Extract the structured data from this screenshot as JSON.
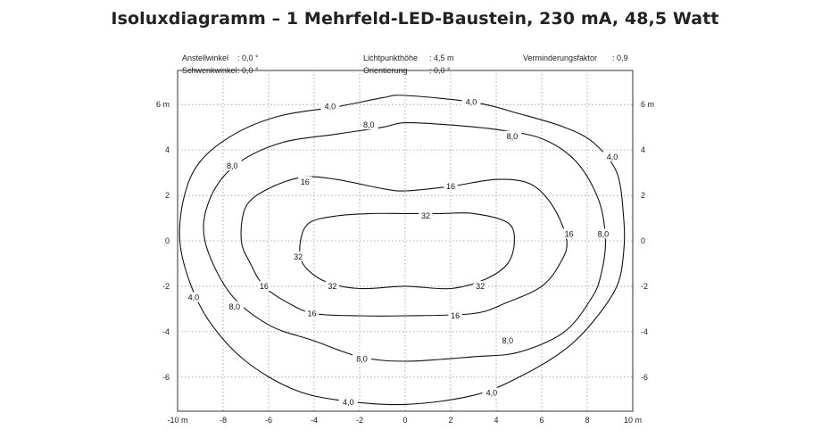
{
  "title": "Isoluxdiagramm – 1 Mehrfeld-LED-Baustein, 230 mA, 48,5 Watt",
  "parameters": {
    "anstellwinkel_label": "Anstellwinkel",
    "anstellwinkel_value": ": 0,0 °",
    "schwenkwinkel_label": "Schwenkwinkel",
    "schwenkwinkel_value": ": 0,0 °",
    "lichtpunkthoehe_label": "Lichtpunkthöhe",
    "lichtpunkthoehe_value": ": 4,5 m",
    "orientierung_label": "Orientierung",
    "orientierung_value": ": 0,0 °",
    "verminderungsfaktor_label": "Verminderungsfaktor",
    "verminderungsfaktor_value": ": 0,9"
  },
  "chart_data": {
    "type": "isolux-contour",
    "xlim": [
      -10,
      10
    ],
    "ylim": [
      -7.5,
      7.5
    ],
    "x_ticks": [
      "-10 m",
      "-8",
      "-6",
      "-4",
      "-2",
      "0",
      "2",
      "4",
      "6",
      "8",
      "10 m"
    ],
    "y_ticks_left": [
      "6 m",
      "4",
      "2",
      "0",
      "-2",
      "-4",
      "-6"
    ],
    "y_ticks_right": [
      "6 m",
      "4",
      "2",
      "0",
      "-2",
      "-4",
      "-6"
    ],
    "grid": "dotted",
    "contours": [
      {
        "level": "4,0",
        "points": [
          [
            0,
            6.4
          ],
          [
            3,
            6.1
          ],
          [
            5,
            5.6
          ],
          [
            7,
            5.0
          ],
          [
            8.3,
            4.3
          ],
          [
            9.3,
            3
          ],
          [
            9.6,
            1
          ],
          [
            9.6,
            -0.5
          ],
          [
            9.3,
            -2
          ],
          [
            8.3,
            -3.5
          ],
          [
            7,
            -4.8
          ],
          [
            5,
            -6
          ],
          [
            3,
            -6.8
          ],
          [
            0,
            -7.2
          ],
          [
            -3,
            -7
          ],
          [
            -5,
            -6.5
          ],
          [
            -7,
            -5.3
          ],
          [
            -8.5,
            -3.7
          ],
          [
            -9.4,
            -2
          ],
          [
            -9.9,
            0
          ],
          [
            -9.7,
            2
          ],
          [
            -9,
            3.5
          ],
          [
            -7.5,
            4.7
          ],
          [
            -5.5,
            5.5
          ],
          [
            -3,
            5.9
          ],
          [
            -1,
            6.3
          ]
        ],
        "labels": [
          [
            -3.3,
            5.9
          ],
          [
            2.9,
            6.1
          ],
          [
            9.1,
            3.7
          ],
          [
            -9.3,
            -2.5
          ],
          [
            -2.5,
            -7.1
          ],
          [
            3.8,
            -6.7
          ]
        ]
      },
      {
        "level": "8,0",
        "points": [
          [
            0,
            5.2
          ],
          [
            2,
            5.1
          ],
          [
            4,
            4.9
          ],
          [
            6,
            4.5
          ],
          [
            7.5,
            3.5
          ],
          [
            8.5,
            1.8
          ],
          [
            8.8,
            0
          ],
          [
            8.6,
            -1.5
          ],
          [
            8.2,
            -2.5
          ],
          [
            7,
            -4
          ],
          [
            5,
            -4.9
          ],
          [
            3,
            -5.1
          ],
          [
            0,
            -5.3
          ],
          [
            -2,
            -5.1
          ],
          [
            -4,
            -4.4
          ],
          [
            -6,
            -3.7
          ],
          [
            -7.7,
            -2.3
          ],
          [
            -8.8,
            0
          ],
          [
            -8.6,
            1.8
          ],
          [
            -7.5,
            3.3
          ],
          [
            -5.5,
            4.3
          ],
          [
            -3,
            4.7
          ],
          [
            -1,
            5
          ]
        ],
        "labels": [
          [
            -1.6,
            5.1
          ],
          [
            4.7,
            4.6
          ],
          [
            8.7,
            0.3
          ],
          [
            -7.6,
            3.3
          ],
          [
            -7.5,
            -2.9
          ],
          [
            -1.9,
            -5.2
          ],
          [
            4.5,
            -4.4
          ]
        ]
      },
      {
        "level": "16",
        "points": [
          [
            0,
            2.2
          ],
          [
            2,
            2.4
          ],
          [
            4,
            2.7
          ],
          [
            5.5,
            2.5
          ],
          [
            6.5,
            1.5
          ],
          [
            7.1,
            0
          ],
          [
            6.8,
            -1
          ],
          [
            6,
            -2
          ],
          [
            4.5,
            -2.7
          ],
          [
            3,
            -3.2
          ],
          [
            0,
            -3.3
          ],
          [
            -2,
            -3.3
          ],
          [
            -4,
            -3.2
          ],
          [
            -5.2,
            -2.7
          ],
          [
            -6.2,
            -2
          ],
          [
            -6.8,
            -1
          ],
          [
            -7.2,
            0
          ],
          [
            -7,
            1.5
          ],
          [
            -6,
            2.3
          ],
          [
            -4.5,
            2.8
          ],
          [
            -3,
            2.7
          ],
          [
            -1,
            2.3
          ]
        ],
        "labels": [
          [
            -4.4,
            2.6
          ],
          [
            2,
            2.4
          ],
          [
            7.2,
            0.3
          ],
          [
            -6.2,
            -2
          ],
          [
            -4.1,
            -3.2
          ],
          [
            2.2,
            -3.3
          ]
        ]
      },
      {
        "level": "32",
        "points": [
          [
            0,
            1.2
          ],
          [
            1.5,
            1.2
          ],
          [
            3,
            1.2
          ],
          [
            4.5,
            0.8
          ],
          [
            4.8,
            0
          ],
          [
            4.5,
            -1
          ],
          [
            3.5,
            -1.7
          ],
          [
            2,
            -2.1
          ],
          [
            0,
            -2
          ],
          [
            -2,
            -2.1
          ],
          [
            -3.5,
            -1.8
          ],
          [
            -4.5,
            -1
          ],
          [
            -4.6,
            0
          ],
          [
            -4.2,
            0.8
          ],
          [
            -3,
            1.1
          ],
          [
            -1.5,
            1.2
          ]
        ],
        "labels": [
          [
            0.9,
            1.1
          ],
          [
            -4.7,
            -0.7
          ],
          [
            -3.2,
            -2
          ],
          [
            3.3,
            -2
          ]
        ]
      }
    ]
  }
}
